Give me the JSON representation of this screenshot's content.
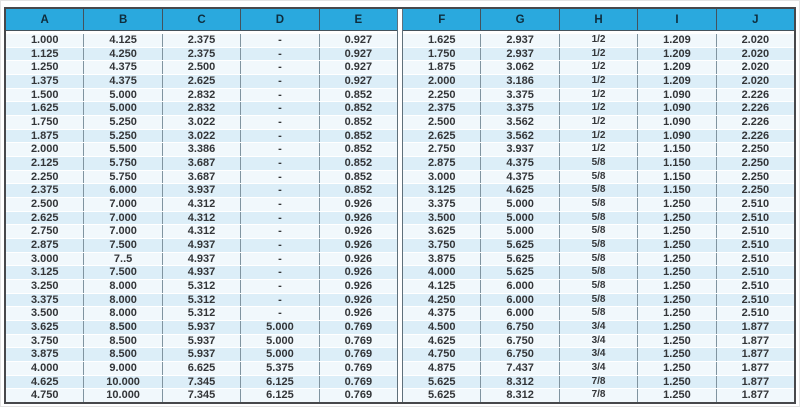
{
  "table": {
    "headers": [
      "A",
      "B",
      "C",
      "D",
      "E",
      "F",
      "G",
      "H",
      "I",
      "J"
    ],
    "rows": [
      [
        "1.000",
        "4.125",
        "2.375",
        "-",
        "0.927",
        "1.625",
        "2.937",
        "1/2",
        "1.209",
        "2.020"
      ],
      [
        "1.125",
        "4.250",
        "2.375",
        "-",
        "0.927",
        "1.750",
        "2.937",
        "1/2",
        "1.209",
        "2.020"
      ],
      [
        "1.250",
        "4.375",
        "2.500",
        "-",
        "0.927",
        "1.875",
        "3.062",
        "1/2",
        "1.209",
        "2.020"
      ],
      [
        "1.375",
        "4.375",
        "2.625",
        "-",
        "0.927",
        "2.000",
        "3.186",
        "1/2",
        "1.209",
        "2.020"
      ],
      [
        "1.500",
        "5.000",
        "2.832",
        "-",
        "0.852",
        "2.250",
        "3.375",
        "1/2",
        "1.090",
        "2.226"
      ],
      [
        "1.625",
        "5.000",
        "2.832",
        "-",
        "0.852",
        "2.375",
        "3.375",
        "1/2",
        "1.090",
        "2.226"
      ],
      [
        "1.750",
        "5.250",
        "3.022",
        "-",
        "0.852",
        "2.500",
        "3.562",
        "1/2",
        "1.090",
        "2.226"
      ],
      [
        "1.875",
        "5.250",
        "3.022",
        "-",
        "0.852",
        "2.625",
        "3.562",
        "1/2",
        "1.090",
        "2.226"
      ],
      [
        "2.000",
        "5.500",
        "3.386",
        "-",
        "0.852",
        "2.750",
        "3.937",
        "1/2",
        "1.150",
        "2.250"
      ],
      [
        "2.125",
        "5.750",
        "3.687",
        "-",
        "0.852",
        "2.875",
        "4.375",
        "5/8",
        "1.150",
        "2.250"
      ],
      [
        "2.250",
        "5.750",
        "3.687",
        "-",
        "0.852",
        "3.000",
        "4.375",
        "5/8",
        "1.150",
        "2.250"
      ],
      [
        "2.375",
        "6.000",
        "3.937",
        "-",
        "0.852",
        "3.125",
        "4.625",
        "5/8",
        "1.150",
        "2.250"
      ],
      [
        "2.500",
        "7.000",
        "4.312",
        "-",
        "0.926",
        "3.375",
        "5.000",
        "5/8",
        "1.250",
        "2.510"
      ],
      [
        "2.625",
        "7.000",
        "4.312",
        "-",
        "0.926",
        "3.500",
        "5.000",
        "5/8",
        "1.250",
        "2.510"
      ],
      [
        "2.750",
        "7.000",
        "4.312",
        "-",
        "0.926",
        "3.625",
        "5.000",
        "5/8",
        "1.250",
        "2.510"
      ],
      [
        "2.875",
        "7.500",
        "4.937",
        "-",
        "0.926",
        "3.750",
        "5.625",
        "5/8",
        "1.250",
        "2.510"
      ],
      [
        "3.000",
        "7..5",
        "4.937",
        "-",
        "0.926",
        "3.875",
        "5.625",
        "5/8",
        "1.250",
        "2.510"
      ],
      [
        "3.125",
        "7.500",
        "4.937",
        "-",
        "0.926",
        "4.000",
        "5.625",
        "5/8",
        "1.250",
        "2.510"
      ],
      [
        "3.250",
        "8.000",
        "5.312",
        "-",
        "0.926",
        "4.125",
        "6.000",
        "5/8",
        "1.250",
        "2.510"
      ],
      [
        "3.375",
        "8.000",
        "5.312",
        "-",
        "0.926",
        "4.250",
        "6.000",
        "5/8",
        "1.250",
        "2.510"
      ],
      [
        "3.500",
        "8.000",
        "5.312",
        "-",
        "0.926",
        "4.375",
        "6.000",
        "5/8",
        "1.250",
        "2.510"
      ],
      [
        "3.625",
        "8.500",
        "5.937",
        "5.000",
        "0.769",
        "4.500",
        "6.750",
        "3/4",
        "1.250",
        "1.877"
      ],
      [
        "3.750",
        "8.500",
        "5.937",
        "5.000",
        "0.769",
        "4.625",
        "6.750",
        "3/4",
        "1.250",
        "1.877"
      ],
      [
        "3.875",
        "8.500",
        "5.937",
        "5.000",
        "0.769",
        "4.750",
        "6.750",
        "3/4",
        "1.250",
        "1.877"
      ],
      [
        "4.000",
        "9.000",
        "6.625",
        "5.375",
        "0.769",
        "4.875",
        "7.437",
        "3/4",
        "1.250",
        "1.877"
      ],
      [
        "4.625",
        "10.000",
        "7.345",
        "6.125",
        "0.769",
        "5.625",
        "8.312",
        "7/8",
        "1.250",
        "1.877"
      ],
      [
        "4.750",
        "10.000",
        "7.345",
        "6.125",
        "0.769",
        "5.625",
        "8.312",
        "7/8",
        "1.250",
        "1.877"
      ]
    ],
    "fraction_column_index": 7,
    "colors": {
      "header_bg": "#2aa9de",
      "header_text": "#0f2d3d",
      "outer_border": "#47484b",
      "row_light": "#f1f8fc",
      "row_dark": "#dceef8",
      "body_text": "#333538",
      "column_line": "#8094a0"
    }
  }
}
